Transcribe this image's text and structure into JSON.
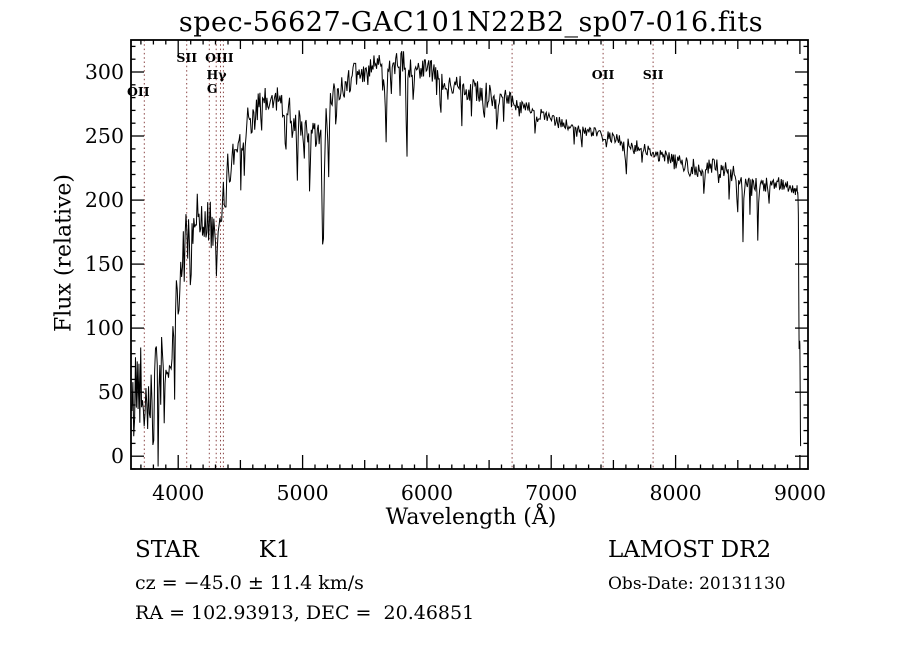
{
  "title": "spec-56627-GAC101N22B2_sp07-016.fits",
  "footer": {
    "object_type": "STAR",
    "subclass": "K1",
    "survey": "LAMOST DR2",
    "velocity": "cz = −45.0 ± 11.4 km/s",
    "obs_date": "Obs-Date: 20131130",
    "coordinates": "RA = 102.93913, DEC =  20.46851"
  },
  "chart_data": {
    "type": "line",
    "title": "spec-56627-GAC101N22B2_sp07-016.fits",
    "xlabel": "Wavelength (Å)",
    "ylabel": "Flux (relative)",
    "xlim": [
      3620,
      9065
    ],
    "ylim": [
      -10,
      325
    ],
    "x_ticks": [
      4000,
      5000,
      6000,
      7000,
      8000,
      9000
    ],
    "y_ticks": [
      0,
      50,
      100,
      150,
      200,
      250,
      300
    ],
    "x_minor_step": 100,
    "y_minor_step": 10,
    "grid": false,
    "line_color": "#000000",
    "reference_line_color": "#8b4545",
    "reference_lines": [
      {
        "label": "OII",
        "wavelength": 3727,
        "label_y": 96,
        "dx": -6
      },
      {
        "label": "SII",
        "wavelength": 4068,
        "label_y": 62,
        "dx": 0
      },
      {
        "label": "",
        "wavelength": 4250
      },
      {
        "label": "G",
        "wavelength": 4305,
        "label_y": 93,
        "dx": -4
      },
      {
        "label": "Hγ",
        "wavelength": 4340,
        "label_y": 79,
        "dx": -4
      },
      {
        "label": "OIII",
        "wavelength": 4363,
        "label_y": 62,
        "dx": -4
      },
      {
        "label": "",
        "wavelength": 6685
      },
      {
        "label": "OII",
        "wavelength": 7417,
        "label_y": 79,
        "dx": 0
      },
      {
        "label": "SII",
        "wavelength": 7819,
        "label_y": 79,
        "dx": 0
      }
    ],
    "spectrum": {
      "noise_seed": 42,
      "envelope": [
        [
          3630,
          28
        ],
        [
          3660,
          55
        ],
        [
          3700,
          62
        ],
        [
          3740,
          54
        ],
        [
          3780,
          48
        ],
        [
          3820,
          58
        ],
        [
          3860,
          66
        ],
        [
          3900,
          72
        ],
        [
          3940,
          82
        ],
        [
          3980,
          108
        ],
        [
          4020,
          145
        ],
        [
          4060,
          168
        ],
        [
          4100,
          180
        ],
        [
          4160,
          187
        ],
        [
          4220,
          188
        ],
        [
          4260,
          181
        ],
        [
          4300,
          156
        ],
        [
          4330,
          168
        ],
        [
          4360,
          196
        ],
        [
          4400,
          222
        ],
        [
          4450,
          238
        ],
        [
          4500,
          248
        ],
        [
          4550,
          258
        ],
        [
          4600,
          266
        ],
        [
          4650,
          272
        ],
        [
          4700,
          275
        ],
        [
          4750,
          277
        ],
        [
          4800,
          278
        ],
        [
          4850,
          276
        ],
        [
          4900,
          270
        ],
        [
          4950,
          261
        ],
        [
          5000,
          255
        ],
        [
          5060,
          252
        ],
        [
          5110,
          248
        ],
        [
          5160,
          255
        ],
        [
          5210,
          272
        ],
        [
          5260,
          284
        ],
        [
          5300,
          290
        ],
        [
          5350,
          293
        ],
        [
          5400,
          296
        ],
        [
          5450,
          298
        ],
        [
          5500,
          300
        ],
        [
          5550,
          302
        ],
        [
          5600,
          304
        ],
        [
          5650,
          303
        ],
        [
          5700,
          304
        ],
        [
          5750,
          306
        ],
        [
          5800,
          308
        ],
        [
          5840,
          303
        ],
        [
          5880,
          300
        ],
        [
          5920,
          303
        ],
        [
          5960,
          306
        ],
        [
          6000,
          305
        ],
        [
          6050,
          298
        ],
        [
          6100,
          293
        ],
        [
          6150,
          290
        ],
        [
          6200,
          292
        ],
        [
          6250,
          292
        ],
        [
          6300,
          288
        ],
        [
          6350,
          286
        ],
        [
          6400,
          286
        ],
        [
          6450,
          284
        ],
        [
          6500,
          283
        ],
        [
          6550,
          278
        ],
        [
          6600,
          282
        ],
        [
          6650,
          280
        ],
        [
          6700,
          276
        ],
        [
          6800,
          272
        ],
        [
          6900,
          267
        ],
        [
          7000,
          263
        ],
        [
          7100,
          259
        ],
        [
          7200,
          256
        ],
        [
          7300,
          253
        ],
        [
          7400,
          251
        ],
        [
          7500,
          248
        ],
        [
          7600,
          244
        ],
        [
          7700,
          241
        ],
        [
          7800,
          238
        ],
        [
          7900,
          234
        ],
        [
          8000,
          230
        ],
        [
          8100,
          227
        ],
        [
          8200,
          224
        ],
        [
          8300,
          226
        ],
        [
          8400,
          223
        ],
        [
          8500,
          218
        ],
        [
          8560,
          213
        ],
        [
          8620,
          212
        ],
        [
          8680,
          210
        ],
        [
          8740,
          212
        ],
        [
          8800,
          214
        ],
        [
          8850,
          213
        ],
        [
          8900,
          211
        ],
        [
          8940,
          208
        ],
        [
          8962,
          206
        ],
        [
          8975,
          211
        ],
        [
          8984,
          206
        ],
        [
          8988,
          185
        ],
        [
          8991,
          120
        ],
        [
          8994,
          78
        ],
        [
          8997,
          92
        ],
        [
          9000,
          86
        ],
        [
          9002,
          55
        ],
        [
          9004,
          18
        ],
        [
          9006,
          4
        ]
      ],
      "noise_profile": [
        [
          3630,
          36
        ],
        [
          3760,
          33
        ],
        [
          3870,
          30
        ],
        [
          3960,
          28
        ],
        [
          4060,
          25
        ],
        [
          4200,
          23
        ],
        [
          4310,
          21
        ],
        [
          4420,
          16
        ],
        [
          4520,
          14
        ],
        [
          4700,
          13
        ],
        [
          4900,
          12
        ],
        [
          5100,
          12
        ],
        [
          5300,
          11
        ],
        [
          5600,
          10
        ],
        [
          6000,
          10
        ],
        [
          6300,
          9
        ],
        [
          6560,
          8
        ],
        [
          6700,
          6
        ],
        [
          6950,
          5
        ],
        [
          7250,
          4.5
        ],
        [
          7550,
          5
        ],
        [
          7850,
          6
        ],
        [
          8150,
          7
        ],
        [
          8450,
          7
        ],
        [
          8700,
          6
        ],
        [
          8880,
          4.5
        ],
        [
          8930,
          4
        ],
        [
          8970,
          3
        ],
        [
          8990,
          2
        ],
        [
          9006,
          1
        ]
      ],
      "absorption_dips": [
        [
          3797,
          30,
          7
        ],
        [
          3835,
          25,
          6
        ],
        [
          3890,
          28,
          6
        ],
        [
          3934,
          42,
          8
        ],
        [
          3970,
          36,
          8
        ],
        [
          4102,
          28,
          6
        ],
        [
          4227,
          30,
          5
        ],
        [
          4530,
          25,
          5
        ],
        [
          4668,
          20,
          5
        ],
        [
          4861,
          40,
          6
        ],
        [
          4920,
          25,
          5
        ],
        [
          4957,
          35,
          5
        ],
        [
          5010,
          25,
          5
        ],
        [
          5058,
          45,
          5
        ],
        [
          5165,
          95,
          11
        ],
        [
          5208,
          60,
          6
        ],
        [
          5270,
          30,
          5
        ],
        [
          5330,
          20,
          4
        ],
        [
          5670,
          58,
          5
        ],
        [
          5715,
          25,
          4
        ],
        [
          5782,
          35,
          5
        ],
        [
          5838,
          85,
          7
        ],
        [
          5893,
          30,
          5
        ],
        [
          6110,
          35,
          5
        ],
        [
          6165,
          20,
          4
        ],
        [
          6280,
          25,
          4
        ],
        [
          6360,
          18,
          4
        ],
        [
          6460,
          30,
          4
        ],
        [
          6495,
          22,
          4
        ],
        [
          6563,
          25,
          6
        ],
        [
          6618,
          15,
          4
        ],
        [
          6870,
          18,
          6
        ],
        [
          7185,
          12,
          5
        ],
        [
          7240,
          10,
          4
        ],
        [
          7600,
          20,
          8
        ],
        [
          7665,
          12,
          5
        ],
        [
          8230,
          18,
          6
        ],
        [
          8350,
          12,
          5
        ],
        [
          8430,
          22,
          5
        ],
        [
          8498,
          40,
          5
        ],
        [
          8542,
          48,
          5
        ],
        [
          8598,
          18,
          4
        ],
        [
          8662,
          40,
          5
        ],
        [
          8750,
          14,
          4
        ]
      ]
    }
  }
}
